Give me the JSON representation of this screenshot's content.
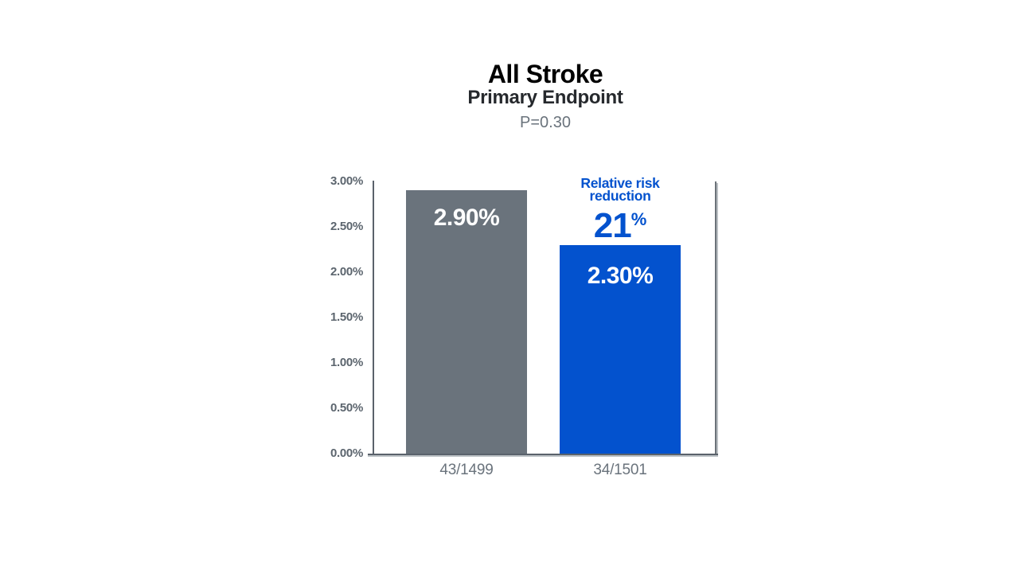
{
  "header": {
    "title": "All Stroke",
    "subtitle": "Primary Endpoint",
    "p_value": "P=0.30"
  },
  "chart_data": {
    "type": "bar",
    "title": "All Stroke",
    "subtitle": "Primary Endpoint",
    "p_value": "P=0.30",
    "categories": [
      "43/1499",
      "34/1501"
    ],
    "values": [
      2.9,
      2.3
    ],
    "bar_labels": [
      "2.90%",
      "2.30%"
    ],
    "bar_colors": [
      "#6A737C",
      "#0352CE"
    ],
    "ylim": [
      0,
      3
    ],
    "ytick_step": 0.5,
    "ytick_labels": [
      "0.00%",
      "0.50%",
      "1.00%",
      "1.50%",
      "2.00%",
      "2.50%",
      "3.00%"
    ],
    "grid": false,
    "legend": null,
    "annotation": {
      "target_index": 1,
      "line1": "Relative risk",
      "line2": "reduction",
      "value": "21",
      "unit": "%"
    },
    "colors": {
      "axis": "#5A626B",
      "axis_shadow": "#BCC1C5",
      "tick_text": "#5C656E",
      "category_text": "#6A737C",
      "bar_value_text": "#FFFFFF",
      "annotation_text": "#0352CE"
    }
  }
}
